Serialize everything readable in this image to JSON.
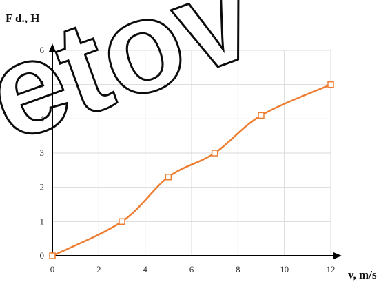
{
  "chart_data": {
    "type": "line",
    "ylabel": "F d., H",
    "xlabel": "v, m/s",
    "xlim": [
      0,
      12
    ],
    "ylim": [
      0,
      6
    ],
    "x_ticks": [
      "0",
      "2",
      "4",
      "6",
      "8",
      "10",
      "12"
    ],
    "y_ticks": [
      "0",
      "1",
      "2",
      "3",
      "4",
      "5",
      "6"
    ],
    "grid": true,
    "series": [
      {
        "x": [
          0,
          3,
          5,
          7,
          9,
          12
        ],
        "y": [
          0,
          1.0,
          2.3,
          3.0,
          4.1,
          5.0
        ]
      }
    ],
    "colors": {
      "line": "#ed7d31",
      "axis": "#000000",
      "grid": "#d9d9d9"
    }
  },
  "watermark": {
    "text": "etov"
  }
}
